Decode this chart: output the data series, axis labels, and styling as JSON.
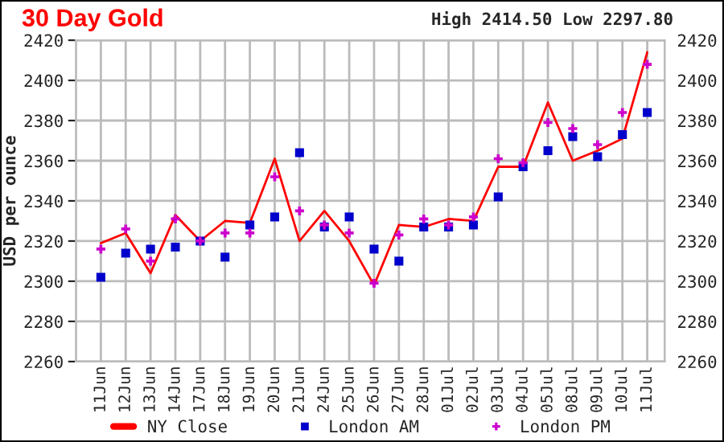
{
  "chart_data": {
    "type": "line",
    "title": "30 Day Gold",
    "ylabel": "USD per ounce",
    "annotations": [
      "High 2414.50 Low 2297.80"
    ],
    "categories": [
      "11Jun",
      "12Jun",
      "13Jun",
      "14Jun",
      "17Jun",
      "18Jun",
      "19Jun",
      "20Jun",
      "21Jun",
      "24Jun",
      "25Jun",
      "26Jun",
      "27Jun",
      "28Jun",
      "01Jul",
      "02Jul",
      "03Jul",
      "04Jul",
      "05Jul",
      "08Jul",
      "09Jul",
      "10Jul",
      "11Jul"
    ],
    "series": [
      {
        "name": "NY Close",
        "marker": "none",
        "color": "#ff0000",
        "values": [
          2319,
          2324,
          2304,
          2333,
          2320,
          2330,
          2329,
          2361,
          2320,
          2335,
          2320,
          2298,
          2328,
          2327,
          2331,
          2330,
          2357,
          2357,
          2389,
          2360,
          2365,
          2371,
          2414
        ]
      },
      {
        "name": "London AM",
        "type": "scatter",
        "marker": "square",
        "color": "#0000cc",
        "values": [
          2302,
          2314,
          2316,
          2317,
          2320,
          2312,
          2328,
          2332,
          2364,
          2327,
          2332,
          2316,
          2310,
          2327,
          2327,
          2328,
          2342,
          2357,
          2365,
          2372,
          2362,
          2373,
          2384
        ]
      },
      {
        "name": "London PM",
        "type": "scatter",
        "marker": "cross",
        "color": "#cc00cc",
        "values": [
          2316,
          2326,
          2310,
          2331,
          2320,
          2324,
          2324,
          2352,
          2335,
          2328,
          2324,
          2299,
          2323,
          2331,
          2328,
          2332,
          2361,
          2359,
          2379,
          2376,
          2368,
          2384,
          2408
        ]
      }
    ],
    "ylim": [
      2260,
      2420
    ],
    "yticks": [
      2260,
      2280,
      2300,
      2320,
      2340,
      2360,
      2380,
      2400,
      2420
    ],
    "y2lim": [
      2260,
      2420
    ],
    "y2ticks": [
      2260,
      2280,
      2300,
      2320,
      2340,
      2360,
      2380,
      2400,
      2420
    ],
    "grid": true,
    "legend": "bottom"
  }
}
